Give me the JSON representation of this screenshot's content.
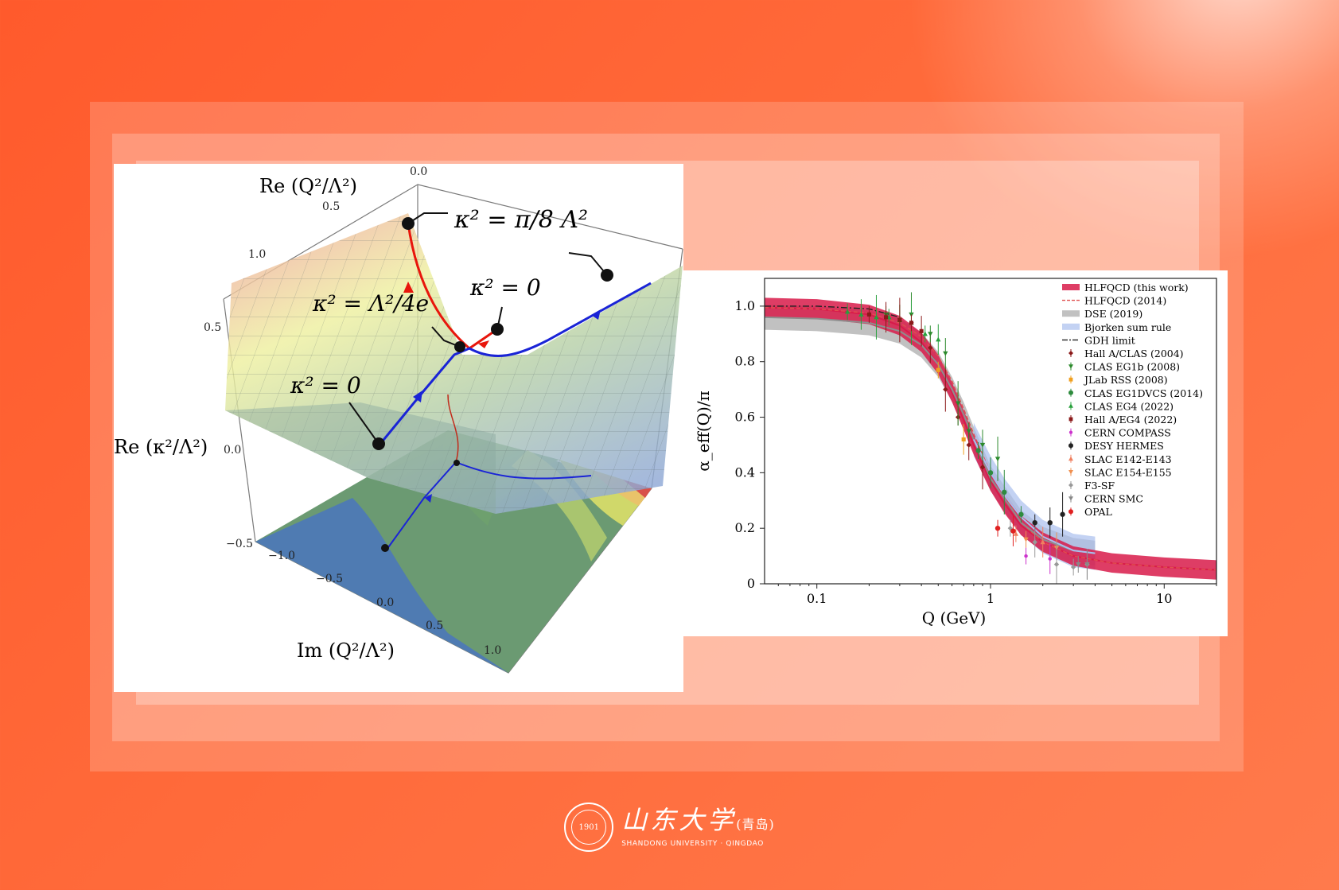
{
  "figure3d": {
    "axis_top_label": "Re (Q²/Λ²)",
    "axis_left_label": "Re (κ²/Λ²)",
    "axis_bottom_label": "Im (Q²/Λ²)",
    "top_ticks": [
      "0.0",
      "0.5",
      "1.0"
    ],
    "left_ticks": [
      "0.5",
      "0.0",
      "−0.5"
    ],
    "bottom_ticks": [
      "−1.0",
      "−0.5",
      "0.0",
      "0.5",
      "1.0"
    ],
    "annotation_pi8": "κ² = π/8 Λ²",
    "annotation_zero_right": "κ² = 0",
    "annotation_lambda_4e": "κ² = Λ²/4e",
    "annotation_zero_left": "κ² = 0",
    "colors": {
      "red_path": "#e8160c",
      "blue_path": "#1a24d6",
      "surface_high": "#e9a08e",
      "surface_mid": "#e9ef9a",
      "surface_low": "#8fb0d6"
    }
  },
  "chart_data": {
    "type": "line",
    "xlabel": "Q (GeV)",
    "ylabel": "α_eff(Q)/π",
    "xscale": "log",
    "xlim": [
      0.05,
      20
    ],
    "ylim": [
      0,
      1.1
    ],
    "x_ticks": [
      "0.1",
      "1",
      "10"
    ],
    "y_ticks": [
      "0",
      "0.2",
      "0.4",
      "0.6",
      "0.8",
      "1.0"
    ],
    "legend_position": "top-right",
    "series": [
      {
        "name": "HLFQCD (this work)",
        "kind": "band",
        "color": "#d81b4a",
        "x": [
          0.05,
          0.1,
          0.2,
          0.3,
          0.4,
          0.5,
          0.6,
          0.7,
          0.8,
          0.9,
          1.0,
          1.2,
          1.5,
          2,
          3,
          5,
          10,
          20
        ],
        "y": [
          0.995,
          0.99,
          0.97,
          0.93,
          0.87,
          0.79,
          0.69,
          0.59,
          0.5,
          0.43,
          0.37,
          0.29,
          0.21,
          0.15,
          0.1,
          0.075,
          0.06,
          0.05
        ]
      },
      {
        "name": "HLFQCD (2014)",
        "kind": "dashed",
        "color": "#e0504f",
        "x": [
          0.05,
          0.1,
          0.2,
          0.3,
          0.4,
          0.5,
          0.6,
          0.7,
          0.8,
          1.0,
          1.5,
          2,
          3,
          5,
          10,
          20
        ],
        "y": [
          0.995,
          0.99,
          0.975,
          0.94,
          0.89,
          0.82,
          0.73,
          0.63,
          0.54,
          0.4,
          0.22,
          0.15,
          0.1,
          0.075,
          0.06,
          0.05
        ]
      },
      {
        "name": "DSE (2019)",
        "kind": "band",
        "color": "#8e8e8e",
        "x": [
          0.05,
          0.1,
          0.2,
          0.3,
          0.4,
          0.5,
          0.6,
          0.7,
          0.8,
          1.0,
          1.5,
          2,
          3,
          4
        ],
        "y": [
          0.96,
          0.955,
          0.94,
          0.91,
          0.86,
          0.79,
          0.7,
          0.61,
          0.52,
          0.38,
          0.22,
          0.16,
          0.12,
          0.11
        ]
      },
      {
        "name": "Bjorken sum rule",
        "kind": "band",
        "color": "#a9bfee",
        "x": [
          0.8,
          1.0,
          1.2,
          1.5,
          2,
          3,
          4
        ],
        "y": [
          0.52,
          0.4,
          0.32,
          0.24,
          0.17,
          0.12,
          0.11
        ]
      },
      {
        "name": "GDH limit",
        "kind": "dashdot",
        "color": "#222222",
        "x": [
          0.05,
          0.1,
          0.2,
          0.3
        ],
        "y": [
          1.0,
          1.0,
          0.99,
          0.96
        ]
      },
      {
        "name": "Hall A/CLAS (2004)",
        "kind": "points",
        "marker": "diamond",
        "color": "#8b1a1a",
        "x": [
          0.35,
          0.45,
          0.55,
          0.65,
          0.75,
          0.9
        ],
        "y": [
          0.94,
          0.85,
          0.7,
          0.6,
          0.5,
          0.42
        ]
      },
      {
        "name": "CLAS EG1b (2008)",
        "kind": "points",
        "marker": "tri-down",
        "color": "#2c8a2c",
        "x": [
          0.25,
          0.3,
          0.35,
          0.45,
          0.55,
          0.65,
          0.75,
          0.9,
          1.1
        ],
        "y": [
          0.97,
          0.95,
          0.97,
          0.9,
          0.83,
          0.65,
          0.55,
          0.5,
          0.45
        ]
      },
      {
        "name": "JLab RSS (2008)",
        "kind": "points",
        "marker": "square",
        "color": "#f0a020",
        "x": [
          0.5,
          0.7
        ],
        "y": [
          0.77,
          0.52
        ]
      },
      {
        "name": "CLAS EG1DVCS (2014)",
        "kind": "points",
        "marker": "circle",
        "color": "#2e8b3e",
        "x": [
          0.85,
          1.0,
          1.2,
          1.5
        ],
        "y": [
          0.48,
          0.4,
          0.33,
          0.25
        ]
      },
      {
        "name": "CLAS EG4 (2022)",
        "kind": "points",
        "marker": "triangle",
        "color": "#28a03c",
        "x": [
          0.15,
          0.18,
          0.22,
          0.26,
          0.3,
          0.35,
          0.42,
          0.5
        ],
        "y": [
          0.98,
          0.97,
          0.96,
          0.96,
          0.95,
          0.94,
          0.9,
          0.88
        ]
      },
      {
        "name": "Hall A/EG4 (2022)",
        "kind": "points",
        "marker": "square",
        "color": "#8b1a1a",
        "x": [
          0.2,
          0.25,
          0.3,
          0.35,
          0.4
        ],
        "y": [
          0.97,
          0.96,
          0.95,
          0.94,
          0.91
        ]
      },
      {
        "name": "CERN COMPASS",
        "kind": "points",
        "marker": "circle-small",
        "color": "#cc33cc",
        "x": [
          1.6,
          2.2
        ],
        "y": [
          0.1,
          0.09
        ]
      },
      {
        "name": "DESY HERMES",
        "kind": "points",
        "marker": "circle",
        "color": "#222222",
        "x": [
          1.8,
          2.2,
          2.6
        ],
        "y": [
          0.22,
          0.22,
          0.25
        ]
      },
      {
        "name": "SLAC E142-E143",
        "kind": "points",
        "marker": "tri-up",
        "color": "#f08060",
        "x": [
          1.4,
          2.0
        ],
        "y": [
          0.18,
          0.15
        ]
      },
      {
        "name": "SLAC E154-E155",
        "kind": "points",
        "marker": "tri-down",
        "color": "#f09050",
        "x": [
          1.6,
          2.4
        ],
        "y": [
          0.16,
          0.13
        ]
      },
      {
        "name": "F3-SF",
        "kind": "points",
        "marker": "diamond",
        "color": "#999999",
        "x": [
          1.3,
          1.8,
          2.4,
          3.0,
          3.6
        ],
        "y": [
          0.2,
          0.15,
          0.07,
          0.06,
          0.07
        ]
      },
      {
        "name": "CERN SMC",
        "kind": "points",
        "marker": "tri-down",
        "color": "#888888",
        "x": [
          3.2,
          3.6
        ],
        "y": [
          0.07,
          0.07
        ]
      },
      {
        "name": "OPAL",
        "kind": "points",
        "marker": "circle",
        "color": "#e02020",
        "x": [
          1.1,
          1.35
        ],
        "y": [
          0.2,
          0.19
        ]
      }
    ]
  },
  "footer": {
    "university_cn": "山东大学",
    "campus_cn": "(青岛)",
    "university_en": "SHANDONG UNIVERSITY · QINGDAO",
    "seal_year": "1901"
  }
}
